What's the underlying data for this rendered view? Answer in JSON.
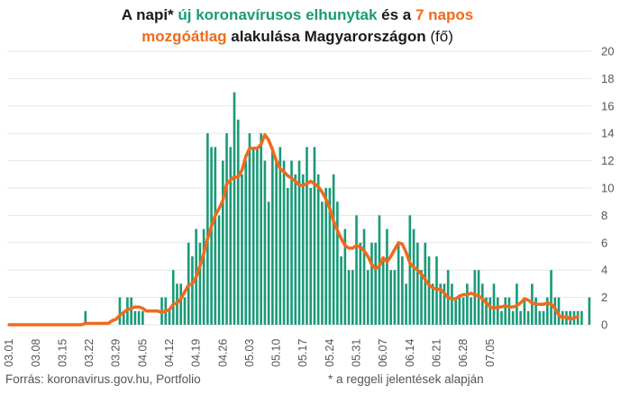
{
  "title": {
    "line1": [
      {
        "text": "A napi* ",
        "style": "plain"
      },
      {
        "text": "új koronavírusos elhunytak",
        "style": "green"
      },
      {
        "text": " és a ",
        "style": "plain"
      },
      {
        "text": "7 napos",
        "style": "orange"
      }
    ],
    "line2": [
      {
        "text": "mozgóátlag",
        "style": "orange"
      },
      {
        "text": " alakulása Magyarországon ",
        "style": "plain"
      },
      {
        "text": "(fő)",
        "style": "light"
      }
    ]
  },
  "footer": {
    "source": "Forrás: koronavirus.gov.hu, Portfolio",
    "note": "* a reggeli jelentések alapján"
  },
  "colors": {
    "bars": "#1a9a78",
    "line": "#f06a1c",
    "grid": "#e6e6e6",
    "text": "#555555"
  },
  "chart_data": {
    "type": "bar",
    "start_date": "03.01",
    "x_tick_labels": [
      "03.01",
      "03.08",
      "03.15",
      "03.22",
      "03.29",
      "04.05",
      "04.12",
      "04.19",
      "04.26",
      "05.03",
      "05.10",
      "05.17",
      "05.24",
      "05.31",
      "06.07",
      "06.14",
      "06.21",
      "06.28",
      "07.05"
    ],
    "ylim": [
      0,
      20
    ],
    "y_ticks": [
      0,
      2,
      4,
      6,
      8,
      10,
      12,
      14,
      16,
      18,
      20
    ],
    "y_axis_position": "right",
    "grid": true,
    "series": [
      {
        "type": "bar",
        "values": [
          0,
          0,
          0,
          0,
          0,
          0,
          0,
          0,
          0,
          0,
          0,
          0,
          0,
          0,
          0,
          0,
          0,
          0,
          0,
          0,
          1,
          0,
          0,
          0,
          0,
          0,
          0,
          0,
          0,
          2,
          1,
          2,
          2,
          1,
          1,
          1,
          0,
          0,
          0,
          0,
          2,
          2,
          1,
          4,
          3,
          3,
          2,
          6,
          5,
          7,
          6,
          7,
          14,
          13,
          13,
          8,
          12,
          14,
          13,
          17,
          15,
          11,
          12,
          14,
          13,
          13,
          14,
          12,
          9,
          13,
          12,
          13,
          12,
          10,
          12,
          11,
          12,
          11,
          13,
          10,
          13,
          11,
          9,
          10,
          10,
          11,
          9,
          5,
          7,
          4,
          4,
          8,
          6,
          7,
          4,
          6,
          6,
          8,
          5,
          7,
          4,
          4,
          6,
          5,
          3,
          8,
          7,
          6,
          4,
          6,
          5,
          3,
          5,
          3,
          3,
          4,
          3,
          2,
          2,
          2,
          3,
          2,
          4,
          4,
          3,
          2,
          2,
          3,
          2,
          1,
          2,
          2,
          1,
          3,
          1,
          2,
          1,
          3,
          2,
          1,
          1,
          2,
          4,
          2,
          2,
          1,
          1,
          1,
          1,
          1,
          1,
          0,
          2
        ]
      },
      {
        "type": "line",
        "values": [
          0,
          0,
          0,
          0,
          0,
          0,
          0,
          0,
          0,
          0,
          0,
          0,
          0,
          0,
          0,
          0,
          0,
          0,
          0,
          0,
          0.1,
          0.1,
          0.1,
          0.1,
          0.1,
          0.1,
          0.1,
          0.3,
          0.4,
          0.7,
          0.9,
          1.1,
          1.2,
          1.3,
          1.3,
          1.2,
          1.0,
          1.0,
          1.0,
          1.0,
          0.9,
          1.0,
          1.1,
          1.5,
          1.6,
          1.9,
          2.4,
          2.9,
          3.0,
          3.5,
          4.3,
          5.2,
          6.3,
          7.2,
          8.0,
          8.5,
          9.1,
          10.3,
          10.6,
          10.8,
          10.8,
          11.3,
          12.3,
          12.9,
          12.9,
          12.9,
          13.2,
          13.9,
          13.5,
          12.8,
          12.0,
          11.4,
          11.2,
          10.9,
          10.7,
          10.5,
          10.2,
          10.2,
          10.3,
          10.5,
          10.3,
          10.1,
          9.7,
          9.2,
          8.5,
          7.6,
          6.9,
          6.3,
          5.8,
          5.6,
          5.6,
          5.8,
          5.7,
          5.4,
          5.0,
          4.4,
          4.1,
          4.3,
          4.9,
          4.6,
          5.0,
          5.5,
          6.0,
          5.9,
          5.3,
          4.5,
          4.2,
          4.0,
          3.7,
          3.3,
          2.9,
          2.7,
          2.6,
          2.6,
          2.3,
          2.0,
          1.9,
          1.9,
          2.1,
          2.2,
          2.2,
          2.3,
          2.2,
          2.1,
          1.9,
          1.6,
          1.3,
          1.2,
          1.3,
          1.3,
          1.4,
          1.3,
          1.3,
          1.4,
          1.6,
          1.9,
          1.8,
          1.6,
          1.5,
          1.5,
          1.5,
          1.6,
          1.5,
          1.2,
          0.7,
          0.5,
          0.6,
          0.4,
          0.5,
          0.6
        ]
      }
    ]
  }
}
